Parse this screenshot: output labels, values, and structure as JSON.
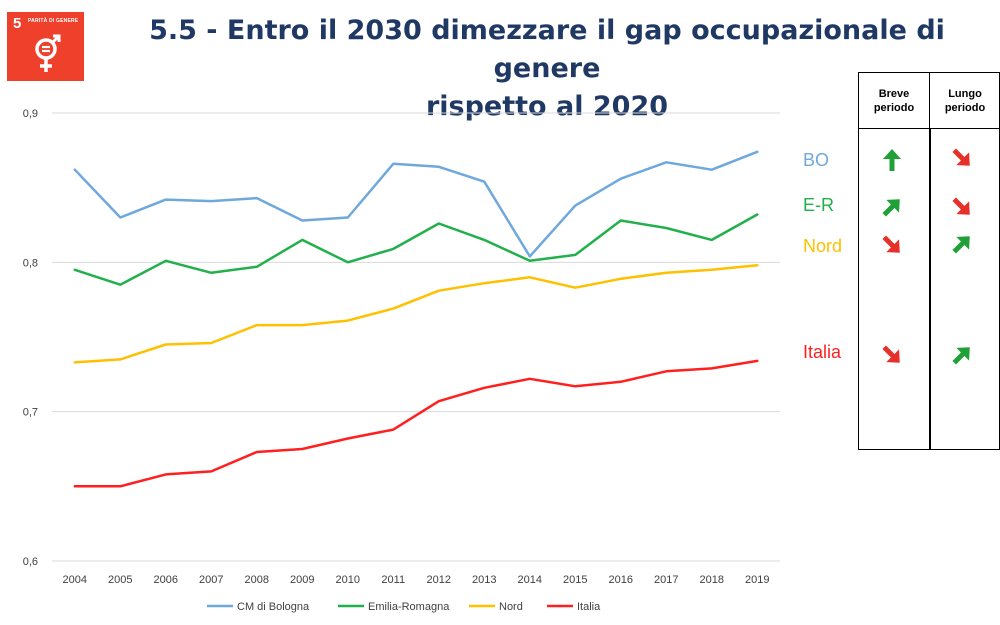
{
  "header": {
    "badge_number": "5",
    "badge_name": "PARITÀ DI GENERE",
    "title_line1": "5.5 - Entro il 2030 dimezzare il gap occupazionale  di genere",
    "title_line2": "rispetto al 2020"
  },
  "colors": {
    "badge": "#ef402b",
    "bologna": "#6fa8dc",
    "emilia_romagna": "#21b04b",
    "nord": "#ffc000",
    "italia": "#ff1f1f",
    "arrow_up": "#21a038",
    "arrow_down": "#e8302a"
  },
  "chart_data": {
    "type": "line",
    "x": [
      "2004",
      "2005",
      "2006",
      "2007",
      "2008",
      "2009",
      "2010",
      "2011",
      "2012",
      "2013",
      "2014",
      "2015",
      "2016",
      "2017",
      "2018",
      "2019"
    ],
    "ylim": [
      0.6,
      0.9
    ],
    "yticks": [
      "0,6",
      "0,7",
      "0,8",
      "0,9"
    ],
    "grid": true,
    "legend_position": "bottom",
    "series": [
      {
        "name": "CM di Bologna",
        "color": "#6fa8dc",
        "values": [
          0.862,
          0.83,
          0.842,
          0.841,
          0.843,
          0.828,
          0.83,
          0.866,
          0.864,
          0.854,
          0.804,
          0.838,
          0.856,
          0.867,
          0.862,
          0.874
        ]
      },
      {
        "name": "Emilia-Romagna",
        "color": "#21b04b",
        "values": [
          0.795,
          0.785,
          0.801,
          0.793,
          0.797,
          0.815,
          0.8,
          0.809,
          0.826,
          0.815,
          0.801,
          0.805,
          0.828,
          0.823,
          0.815,
          0.832
        ]
      },
      {
        "name": "Nord",
        "color": "#ffc000",
        "values": [
          0.733,
          0.735,
          0.745,
          0.746,
          0.758,
          0.758,
          0.761,
          0.769,
          0.781,
          0.786,
          0.79,
          0.783,
          0.789,
          0.793,
          0.795,
          0.798
        ]
      },
      {
        "name": "Italia",
        "color": "#ff1f1f",
        "values": [
          0.65,
          0.65,
          0.658,
          0.66,
          0.673,
          0.675,
          0.682,
          0.688,
          0.707,
          0.716,
          0.722,
          0.717,
          0.72,
          0.727,
          0.729,
          0.734
        ]
      }
    ]
  },
  "trend_table": {
    "header_short": "Breve periodo",
    "header_long": "Lungo periodo",
    "rows": [
      {
        "label": "BO",
        "color": "#6fa8dc",
        "short": "up",
        "long": "down"
      },
      {
        "label": "E-R",
        "color": "#21b04b",
        "short": "up-right",
        "long": "down"
      },
      {
        "label": "Nord",
        "color": "#ffc000",
        "short": "down",
        "long": "up-right"
      },
      {
        "label": "Italia",
        "color": "#ff1f1f",
        "short": "down",
        "long": "up-right"
      }
    ]
  }
}
